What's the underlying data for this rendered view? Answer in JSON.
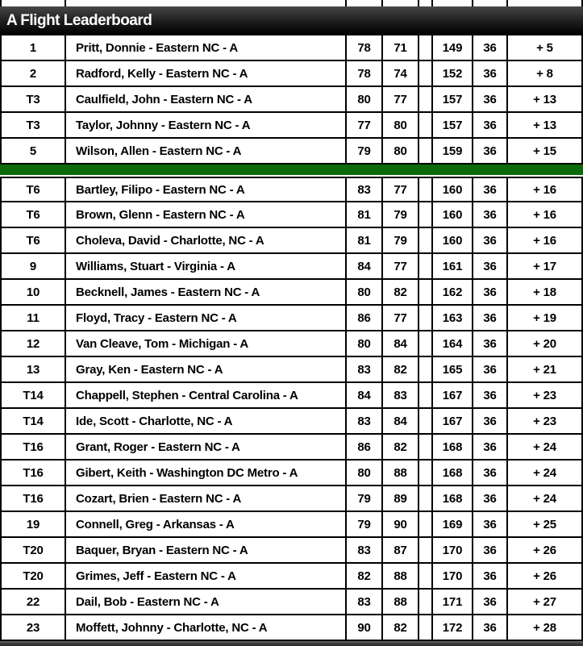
{
  "header": {
    "title": "A Flight Leaderboard"
  },
  "colors": {
    "header_gradient_top": "#474747",
    "header_gradient_bottom": "#000000",
    "divider_green": "#0a6b0a",
    "border": "#000000",
    "row_background": "#ffffff",
    "text": "#000000",
    "header_text": "#ffffff"
  },
  "table": {
    "columns": [
      "rank",
      "player",
      "round1",
      "round2",
      "spacer",
      "total",
      "par",
      "to_par"
    ],
    "divider_after_row_index": 4,
    "rows": [
      {
        "rank": "1",
        "player": "Pritt, Donnie - Eastern NC - A",
        "round1": "78",
        "round2": "71",
        "total": "149",
        "par": "36",
        "to_par": "+ 5"
      },
      {
        "rank": "2",
        "player": "Radford, Kelly - Eastern NC - A",
        "round1": "78",
        "round2": "74",
        "total": "152",
        "par": "36",
        "to_par": "+ 8"
      },
      {
        "rank": "T3",
        "player": "Caulfield, John - Eastern NC - A",
        "round1": "80",
        "round2": "77",
        "total": "157",
        "par": "36",
        "to_par": "+ 13"
      },
      {
        "rank": "T3",
        "player": "Taylor, Johnny - Eastern NC - A",
        "round1": "77",
        "round2": "80",
        "total": "157",
        "par": "36",
        "to_par": "+ 13"
      },
      {
        "rank": "5",
        "player": "Wilson, Allen - Eastern NC - A",
        "round1": "79",
        "round2": "80",
        "total": "159",
        "par": "36",
        "to_par": "+ 15"
      },
      {
        "rank": "T6",
        "player": "Bartley, Filipo - Eastern NC - A",
        "round1": "83",
        "round2": "77",
        "total": "160",
        "par": "36",
        "to_par": "+ 16"
      },
      {
        "rank": "T6",
        "player": "Brown, Glenn - Eastern NC - A",
        "round1": "81",
        "round2": "79",
        "total": "160",
        "par": "36",
        "to_par": "+ 16"
      },
      {
        "rank": "T6",
        "player": "Choleva, David - Charlotte, NC - A",
        "round1": "81",
        "round2": "79",
        "total": "160",
        "par": "36",
        "to_par": "+ 16"
      },
      {
        "rank": "9",
        "player": "Williams, Stuart - Virginia - A",
        "round1": "84",
        "round2": "77",
        "total": "161",
        "par": "36",
        "to_par": "+ 17"
      },
      {
        "rank": "10",
        "player": "Becknell, James - Eastern NC - A",
        "round1": "80",
        "round2": "82",
        "total": "162",
        "par": "36",
        "to_par": "+ 18"
      },
      {
        "rank": "11",
        "player": "Floyd, Tracy - Eastern NC - A",
        "round1": "86",
        "round2": "77",
        "total": "163",
        "par": "36",
        "to_par": "+ 19"
      },
      {
        "rank": "12",
        "player": "Van Cleave, Tom - Michigan - A",
        "round1": "80",
        "round2": "84",
        "total": "164",
        "par": "36",
        "to_par": "+ 20"
      },
      {
        "rank": "13",
        "player": "Gray, Ken - Eastern NC - A",
        "round1": "83",
        "round2": "82",
        "total": "165",
        "par": "36",
        "to_par": "+ 21"
      },
      {
        "rank": "T14",
        "player": "Chappell, Stephen - Central Carolina - A",
        "round1": "84",
        "round2": "83",
        "total": "167",
        "par": "36",
        "to_par": "+ 23"
      },
      {
        "rank": "T14",
        "player": "Ide, Scott - Charlotte, NC - A",
        "round1": "83",
        "round2": "84",
        "total": "167",
        "par": "36",
        "to_par": "+ 23"
      },
      {
        "rank": "T16",
        "player": "Grant, Roger - Eastern NC - A",
        "round1": "86",
        "round2": "82",
        "total": "168",
        "par": "36",
        "to_par": "+ 24"
      },
      {
        "rank": "T16",
        "player": "Gibert, Keith - Washington DC Metro - A",
        "round1": "80",
        "round2": "88",
        "total": "168",
        "par": "36",
        "to_par": "+ 24"
      },
      {
        "rank": "T16",
        "player": "Cozart, Brien - Eastern NC - A",
        "round1": "79",
        "round2": "89",
        "total": "168",
        "par": "36",
        "to_par": "+ 24"
      },
      {
        "rank": "19",
        "player": "Connell, Greg - Arkansas - A",
        "round1": "79",
        "round2": "90",
        "total": "169",
        "par": "36",
        "to_par": "+ 25"
      },
      {
        "rank": "T20",
        "player": "Baquer, Bryan - Eastern NC - A",
        "round1": "83",
        "round2": "87",
        "total": "170",
        "par": "36",
        "to_par": "+ 26"
      },
      {
        "rank": "T20",
        "player": "Grimes, Jeff - Eastern NC - A",
        "round1": "82",
        "round2": "88",
        "total": "170",
        "par": "36",
        "to_par": "+ 26"
      },
      {
        "rank": "22",
        "player": "Dail, Bob - Eastern NC - A",
        "round1": "83",
        "round2": "88",
        "total": "171",
        "par": "36",
        "to_par": "+ 27"
      },
      {
        "rank": "23",
        "player": "Moffett, Johnny - Charlotte, NC - A",
        "round1": "90",
        "round2": "82",
        "total": "172",
        "par": "36",
        "to_par": "+ 28"
      }
    ]
  }
}
